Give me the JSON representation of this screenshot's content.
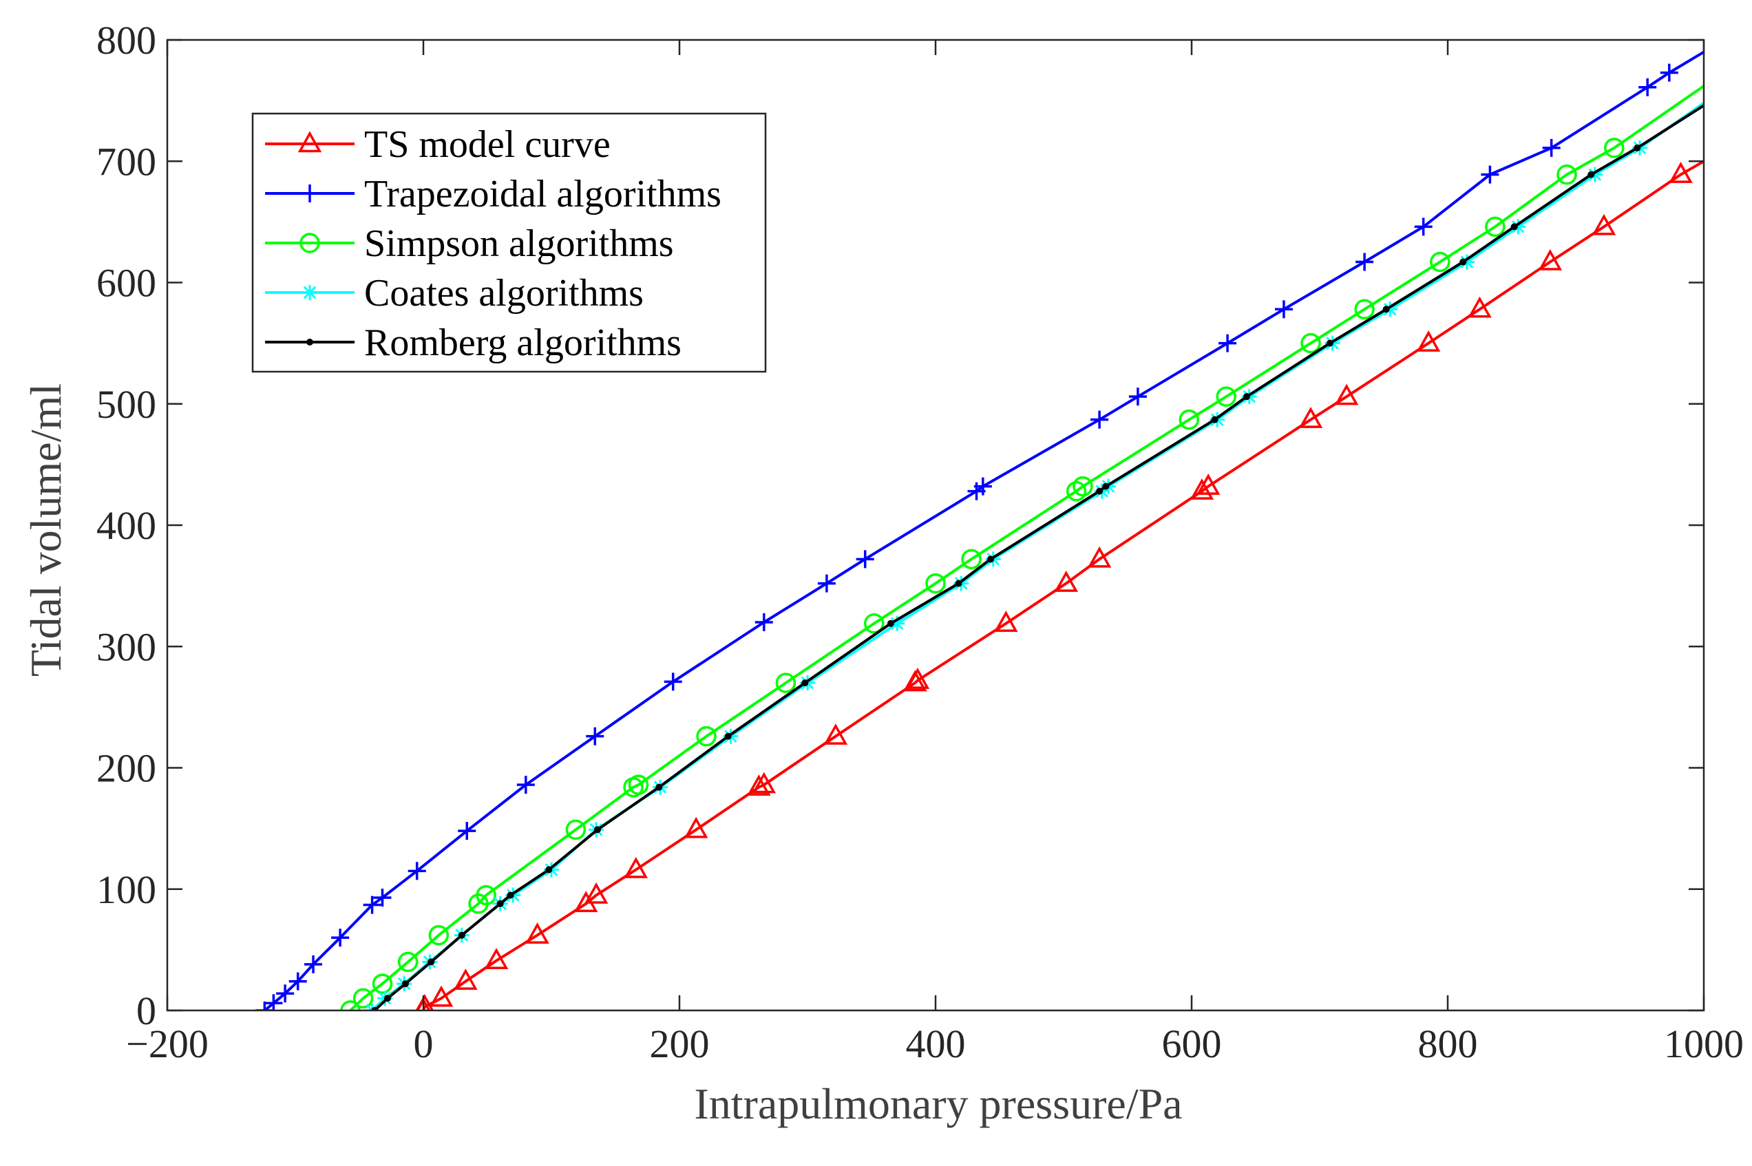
{
  "chart_data": {
    "type": "line",
    "title": "",
    "xlabel": "Intrapulmonary pressure/Pa",
    "ylabel": "Tidal volume/ml",
    "xlim": [
      -200,
      1000
    ],
    "ylim": [
      0,
      800
    ],
    "xticks": [
      -200,
      0,
      200,
      400,
      600,
      800,
      1000
    ],
    "yticks": [
      0,
      100,
      200,
      300,
      400,
      500,
      600,
      700,
      800
    ],
    "xtick_labels": [
      "−200",
      "0",
      "200",
      "400",
      "600",
      "800",
      "1000"
    ],
    "ytick_labels": [
      "0",
      "100",
      "200",
      "300",
      "400",
      "500",
      "600",
      "700",
      "800"
    ],
    "grid": false,
    "legend_position": "top-left",
    "series": [
      {
        "name": "TS model curve",
        "color": "#ff0000",
        "marker": "triangle",
        "x": [
          0,
          1,
          14,
          33,
          57,
          89,
          127,
          135,
          166,
          213,
          262,
          266,
          322,
          384,
          386,
          455,
          502,
          528,
          608,
          613,
          693,
          721,
          785,
          825,
          880,
          922,
          982,
          1000
        ],
        "y": [
          0,
          3,
          10,
          24,
          41,
          62,
          88,
          95,
          116,
          149,
          184,
          186,
          226,
          270,
          272,
          319,
          352,
          372,
          428,
          432,
          487,
          506,
          550,
          578,
          617,
          646,
          689,
          700
        ]
      },
      {
        "name": "Trapezoidal algorithms",
        "color": "#0000ff",
        "marker": "plus",
        "x": [
          -124,
          -117,
          -108,
          -98,
          -86,
          -65,
          -40,
          -32,
          -5,
          34,
          80,
          134,
          195,
          266,
          315,
          345,
          432,
          437,
          528,
          558,
          628,
          672,
          735,
          781,
          833,
          881,
          956,
          973,
          1000
        ],
        "y": [
          0,
          6,
          14,
          24,
          38,
          60,
          87,
          93,
          115,
          148,
          186,
          226,
          271,
          320,
          352,
          372,
          428,
          432,
          487,
          506,
          550,
          578,
          617,
          646,
          689,
          711,
          761,
          773,
          790
        ]
      },
      {
        "name": "Simpson algorithms",
        "color": "#00ff00",
        "marker": "circle",
        "x": [
          -57,
          -47,
          -32,
          -12,
          12,
          43,
          49,
          119,
          164,
          168,
          221,
          283,
          352,
          400,
          428,
          510,
          515,
          598,
          627,
          693,
          735,
          794,
          837,
          893,
          930,
          1000
        ],
        "y": [
          0,
          10,
          22,
          40,
          62,
          88,
          95,
          149,
          184,
          186,
          226,
          270,
          319,
          352,
          372,
          428,
          432,
          487,
          506,
          550,
          578,
          617,
          646,
          689,
          711,
          762
        ]
      },
      {
        "name": "Coates algorithms",
        "color": "#00ffff",
        "marker": "asterisk",
        "x": [
          -40,
          -30,
          -15,
          5,
          30,
          60,
          70,
          100,
          135,
          185,
          240,
          300,
          370,
          420,
          445,
          530,
          535,
          620,
          645,
          710,
          755,
          815,
          855,
          915,
          950,
          1000
        ],
        "y": [
          0,
          10,
          22,
          40,
          62,
          88,
          95,
          116,
          149,
          184,
          226,
          270,
          319,
          352,
          372,
          428,
          432,
          487,
          506,
          550,
          578,
          617,
          646,
          689,
          711,
          748
        ]
      },
      {
        "name": "Romberg algorithms",
        "color": "#000000",
        "marker": "dot",
        "x": [
          -38,
          -28,
          -14,
          6,
          30,
          60,
          68,
          98,
          136,
          184,
          238,
          298,
          365,
          418,
          443,
          528,
          533,
          618,
          643,
          708,
          752,
          812,
          852,
          912,
          948,
          1000
        ],
        "y": [
          0,
          10,
          22,
          40,
          62,
          88,
          95,
          116,
          149,
          184,
          226,
          270,
          319,
          352,
          372,
          428,
          432,
          487,
          506,
          550,
          578,
          617,
          646,
          689,
          711,
          746
        ]
      }
    ]
  }
}
